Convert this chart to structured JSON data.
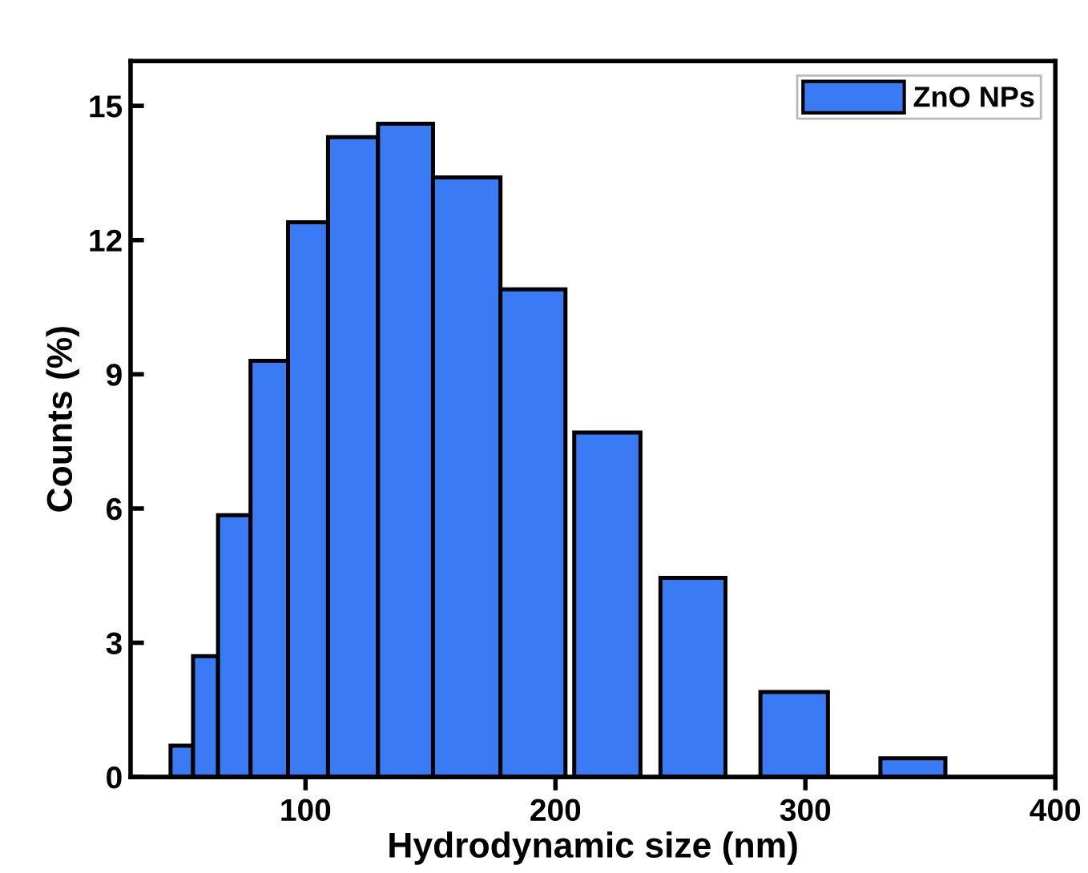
{
  "chart_data": {
    "type": "histogram",
    "xlabel": "Hydrodynamic size (nm)",
    "ylabel": "Counts (%)",
    "bins": [
      46,
      55,
      65,
      78,
      93,
      109,
      129,
      151,
      178,
      204,
      207.5,
      234,
      242,
      268,
      282,
      309,
      330,
      356
    ],
    "series": [
      {
        "name": "ZnO NPs",
        "color": "#3a7af5",
        "values": [
          0.7,
          2.7,
          5.85,
          9.3,
          12.4,
          14.3,
          14.6,
          13.4,
          10.9,
          0,
          7.7,
          0,
          4.45,
          0,
          1.9,
          0,
          0.42
        ]
      }
    ],
    "xlim": [
      30,
      400
    ],
    "xticks": [
      100,
      200,
      300,
      400
    ],
    "ylim": [
      0,
      16
    ],
    "yticks": [
      0,
      3,
      6,
      9,
      12,
      15
    ],
    "legend": "top right"
  }
}
